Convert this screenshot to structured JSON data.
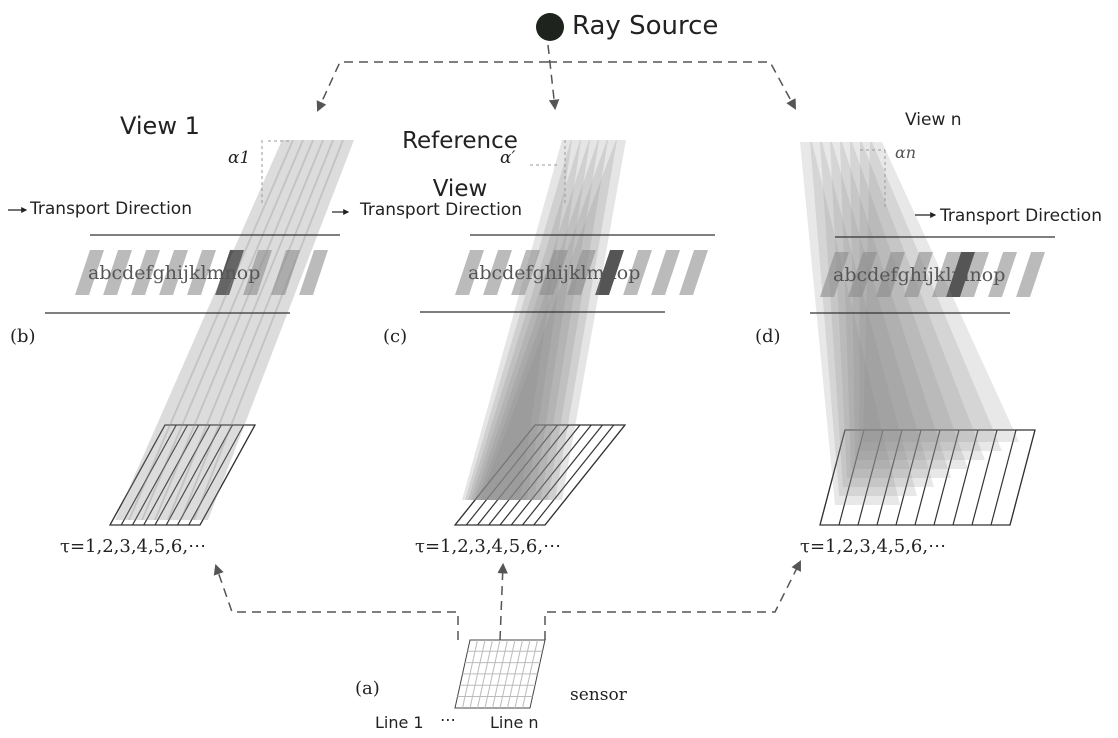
{
  "source": {
    "label": "Ray Source"
  },
  "panels": [
    {
      "tag": "(b)",
      "view": "View 1",
      "angle": "α1",
      "direction": "Transport Direction",
      "text": "abcdefghijklmnop",
      "tau": "τ=1,2,3,4,5,6,⋯"
    },
    {
      "tag": "(c)",
      "view": "Reference View",
      "angle": "α′",
      "direction": "Transport Direction",
      "text": "abcdefghijklmnop",
      "tau": "τ=1,2,3,4,5,6,⋯"
    },
    {
      "tag": "(d)",
      "view": "View n",
      "angle": "αn",
      "direction": "Transport Direction",
      "text": "abcdefghijklmnop",
      "tau": "τ=1,2,3,4,5,6,⋯"
    }
  ],
  "sensor": {
    "tag": "(a)",
    "label": "sensor",
    "line_first": "Line 1",
    "ellipsis": "⋯",
    "line_last": "Line n"
  }
}
